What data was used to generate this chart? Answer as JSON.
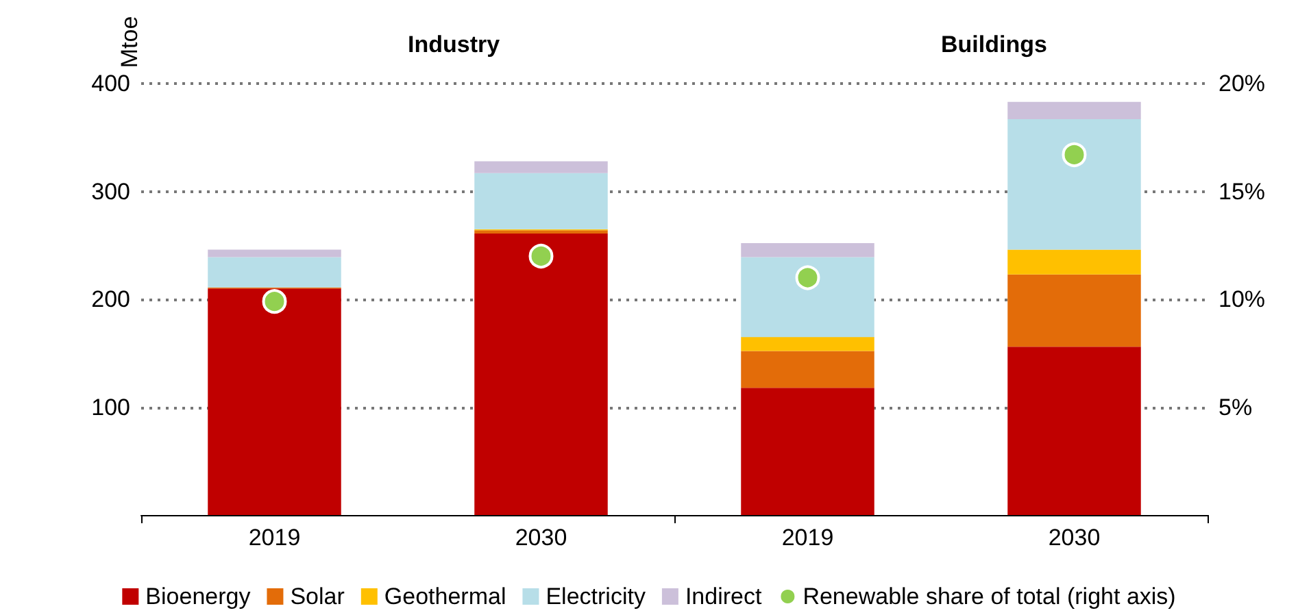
{
  "chart_data": {
    "type": "bar",
    "stacked": true,
    "ylabel": "Mtoe",
    "categories": [
      "2019",
      "2030",
      "2019",
      "2030"
    ],
    "annotations": [
      "Industry",
      "Buildings"
    ],
    "series": [
      {
        "name": "Bioenergy",
        "color": "#c00000",
        "values": [
          210,
          261,
          118,
          156
        ]
      },
      {
        "name": "Solar",
        "color": "#e36c09",
        "values": [
          1,
          3,
          34,
          67
        ]
      },
      {
        "name": "Geothermal",
        "color": "#ffc000",
        "values": [
          0,
          1,
          13,
          23
        ]
      },
      {
        "name": "Electricity",
        "color": "#b7dee8",
        "values": [
          28,
          52,
          74,
          121
        ]
      },
      {
        "name": "Indirect",
        "color": "#ccc0da",
        "values": [
          7,
          11,
          13,
          16
        ]
      },
      {
        "name": "Renewable share of total (right axis)",
        "type": "scatter",
        "axis": "y2",
        "color": "#92d050",
        "values": [
          9.9,
          12.0,
          11.0,
          16.7
        ]
      }
    ],
    "ylim": [
      0,
      400
    ],
    "yticks": [
      100,
      200,
      300,
      400
    ],
    "y2lim": [
      0,
      20
    ],
    "y2ticks": [
      {
        "value": 5,
        "label": "5%"
      },
      {
        "value": 10,
        "label": "10%"
      },
      {
        "value": 15,
        "label": "15%"
      },
      {
        "value": 20,
        "label": "20%"
      }
    ],
    "grid": "y",
    "legend": "bottom",
    "marker": "circle"
  }
}
